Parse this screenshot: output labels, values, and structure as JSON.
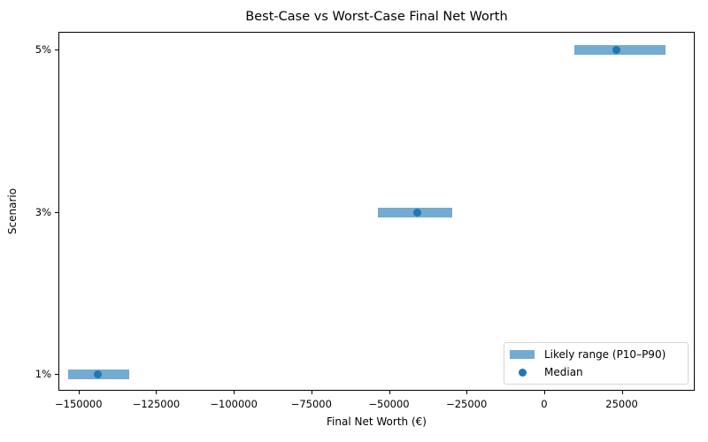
{
  "chart_data": {
    "type": "range_dot",
    "title": "Best-Case vs Worst-Case Final Net Worth",
    "xlabel": "Final Net Worth (€)",
    "ylabel": "Scenario",
    "categories": [
      "1%",
      "3%",
      "5%"
    ],
    "series": [
      {
        "name": "Likely range (P10–P90)",
        "type": "range",
        "low": [
          -153500,
          -53600,
          9700
        ],
        "high": [
          -133800,
          -29700,
          39200
        ],
        "color": "#74abd0"
      },
      {
        "name": "Median",
        "type": "scatter",
        "values": [
          -143800,
          -41000,
          23300
        ],
        "color": "#1f77b4"
      }
    ],
    "xlim": [
      -156500,
      48500
    ],
    "xticks": [
      -150000,
      -125000,
      -100000,
      -75000,
      -50000,
      -25000,
      0,
      25000
    ],
    "xtick_labels": [
      "−150000",
      "−125000",
      "−100000",
      "−75000",
      "−50000",
      "−25000",
      "0",
      "25000"
    ],
    "grid": false,
    "legend_position": "lower right"
  },
  "legend": {
    "range_label": "Likely range (P10–P90)",
    "median_label": "Median"
  }
}
